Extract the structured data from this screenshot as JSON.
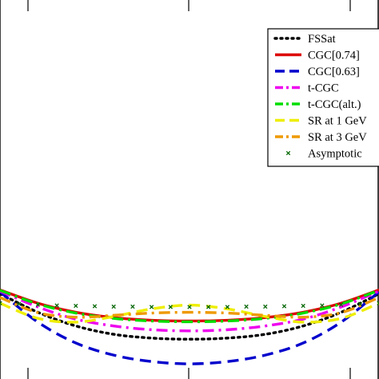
{
  "chart_data": {
    "type": "line",
    "title": "",
    "xlabel": "",
    "ylabel": "",
    "xlim": [
      0,
      1
    ],
    "ylim": [
      0,
      1
    ],
    "grid": false,
    "legend_position": "top-right",
    "series": [
      {
        "name": "FSSat",
        "color": "#000000",
        "style": "dotted",
        "x": [
          0.0,
          0.1,
          0.2,
          0.3,
          0.4,
          0.5,
          0.6,
          0.7,
          0.8,
          0.9,
          1.0
        ],
        "y": [
          0.225,
          0.176,
          0.14,
          0.118,
          0.108,
          0.105,
          0.108,
          0.118,
          0.14,
          0.176,
          0.225
        ]
      },
      {
        "name": "CGC[0.74]",
        "color": "#dd0000",
        "style": "solid",
        "x": [
          0.0,
          0.1,
          0.2,
          0.3,
          0.4,
          0.5,
          0.6,
          0.7,
          0.8,
          0.9,
          1.0
        ],
        "y": [
          0.235,
          0.2,
          0.176,
          0.162,
          0.155,
          0.153,
          0.155,
          0.162,
          0.176,
          0.2,
          0.235
        ]
      },
      {
        "name": "CGC[0.63]",
        "color": "#0000cc",
        "style": "dashed",
        "x": [
          0.0,
          0.1,
          0.2,
          0.3,
          0.4,
          0.5,
          0.6,
          0.7,
          0.8,
          0.9,
          1.0
        ],
        "y": [
          0.23,
          0.15,
          0.095,
          0.063,
          0.046,
          0.04,
          0.046,
          0.063,
          0.095,
          0.15,
          0.23
        ]
      },
      {
        "name": "t-CGC",
        "color": "#ee00ee",
        "style": "dashdot",
        "x": [
          0.0,
          0.1,
          0.2,
          0.3,
          0.4,
          0.5,
          0.6,
          0.7,
          0.8,
          0.9,
          1.0
        ],
        "y": [
          0.232,
          0.19,
          0.158,
          0.14,
          0.13,
          0.127,
          0.13,
          0.14,
          0.158,
          0.19,
          0.232
        ]
      },
      {
        "name": "t-CGC(alt.)",
        "color": "#00dd00",
        "style": "dashdot",
        "x": [
          0.0,
          0.1,
          0.2,
          0.3,
          0.4,
          0.5,
          0.6,
          0.7,
          0.8,
          0.9,
          1.0
        ],
        "y": [
          0.234,
          0.198,
          0.174,
          0.16,
          0.153,
          0.151,
          0.153,
          0.16,
          0.174,
          0.198,
          0.234
        ]
      },
      {
        "name": "SR at 1 GeV",
        "color": "#eeee00",
        "style": "dashed",
        "x": [
          0.0,
          0.1,
          0.2,
          0.3,
          0.4,
          0.5,
          0.6,
          0.7,
          0.8,
          0.9,
          1.0
        ],
        "y": [
          0.2,
          0.16,
          0.15,
          0.165,
          0.185,
          0.195,
          0.185,
          0.165,
          0.15,
          0.16,
          0.2
        ]
      },
      {
        "name": "SR at 3 GeV",
        "color": "#ee9900",
        "style": "dashdot",
        "x": [
          0.0,
          0.1,
          0.2,
          0.3,
          0.4,
          0.5,
          0.6,
          0.7,
          0.8,
          0.9,
          1.0
        ],
        "y": [
          0.215,
          0.175,
          0.163,
          0.168,
          0.174,
          0.176,
          0.174,
          0.168,
          0.163,
          0.175,
          0.215
        ]
      },
      {
        "name": "Asymptotic",
        "color": "#006600",
        "style": "markers",
        "x": [
          0.0,
          0.05,
          0.1,
          0.15,
          0.2,
          0.25,
          0.3,
          0.35,
          0.4,
          0.45,
          0.5,
          0.55,
          0.6,
          0.65,
          0.7,
          0.75,
          0.8,
          0.85,
          0.9,
          0.95,
          1.0
        ],
        "y": [
          0.2,
          0.198,
          0.196,
          0.194,
          0.193,
          0.192,
          0.191,
          0.191,
          0.19,
          0.19,
          0.19,
          0.19,
          0.19,
          0.191,
          0.191,
          0.192,
          0.193,
          0.194,
          0.196,
          0.198,
          0.2
        ]
      }
    ]
  }
}
